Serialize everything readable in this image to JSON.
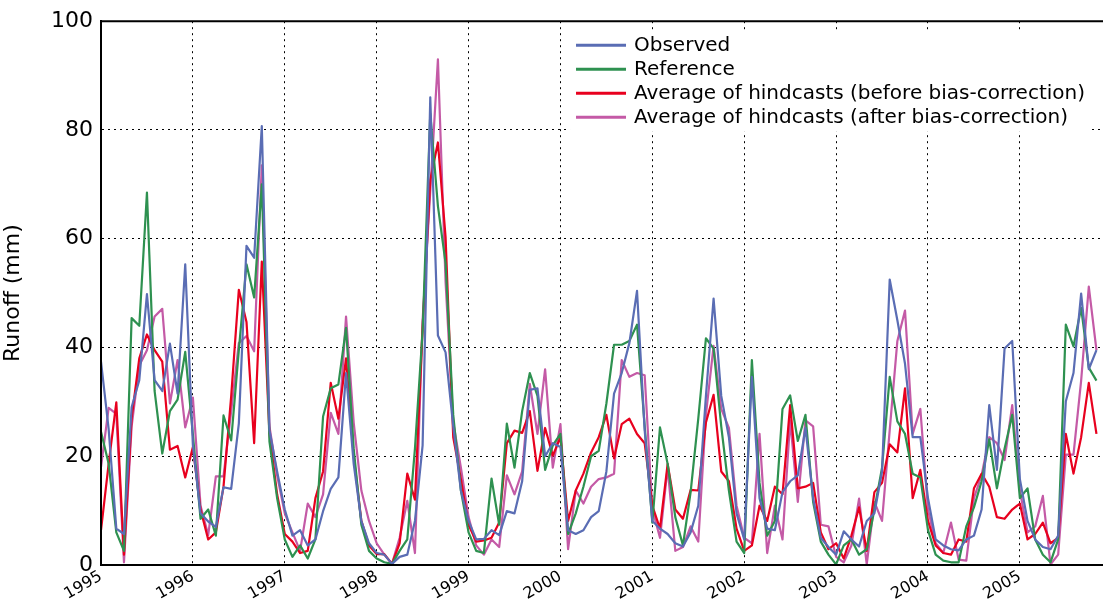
{
  "chart_data": {
    "type": "line",
    "ylabel": "Runoff (mm)",
    "x": [
      "1995-01",
      "1995-02",
      "1995-03",
      "1995-04",
      "1995-05",
      "1995-06",
      "1995-07",
      "1995-08",
      "1995-09",
      "1995-10",
      "1995-11",
      "1995-12",
      "1996-01",
      "1996-02",
      "1996-03",
      "1996-04",
      "1996-05",
      "1996-06",
      "1996-07",
      "1996-08",
      "1996-09",
      "1996-10",
      "1996-11",
      "1996-12",
      "1997-01",
      "1997-02",
      "1997-03",
      "1997-04",
      "1997-05",
      "1997-06",
      "1997-07",
      "1997-08",
      "1997-09",
      "1997-10",
      "1997-11",
      "1997-12",
      "1998-01",
      "1998-02",
      "1998-03",
      "1998-04",
      "1998-05",
      "1998-06",
      "1998-07",
      "1998-08",
      "1998-09",
      "1998-10",
      "1998-11",
      "1998-12",
      "1999-01",
      "1999-02",
      "1999-03",
      "1999-04",
      "1999-05",
      "1999-06",
      "1999-07",
      "1999-08",
      "1999-09",
      "1999-10",
      "1999-11",
      "1999-12",
      "2000-01",
      "2000-02",
      "2000-03",
      "2000-04",
      "2000-05",
      "2000-06",
      "2000-07",
      "2000-08",
      "2000-09",
      "2000-10",
      "2000-11",
      "2000-12",
      "2001-01",
      "2001-02",
      "2001-03",
      "2001-04",
      "2001-05",
      "2001-06",
      "2001-07",
      "2001-08",
      "2001-09",
      "2001-10",
      "2001-11",
      "2001-12",
      "2002-01",
      "2002-02",
      "2002-03",
      "2002-04",
      "2002-05",
      "2002-06",
      "2002-07",
      "2002-08",
      "2002-09",
      "2002-10",
      "2002-11",
      "2002-12",
      "2003-01",
      "2003-02",
      "2003-03",
      "2003-04",
      "2003-05",
      "2003-06",
      "2003-07",
      "2003-08",
      "2003-09",
      "2003-10",
      "2003-11",
      "2003-12",
      "2004-01",
      "2004-02",
      "2004-03",
      "2004-04",
      "2004-05",
      "2004-06",
      "2004-07",
      "2004-08",
      "2004-09",
      "2004-10",
      "2004-11",
      "2004-12",
      "2005-01",
      "2005-02",
      "2005-03",
      "2005-04",
      "2005-05",
      "2005-06",
      "2005-07",
      "2005-08",
      "2005-09",
      "2005-10",
      "2005-11"
    ],
    "series": [
      {
        "name": "Observed",
        "color": "#5a6db4",
        "values": [
          37.4,
          25,
          6.7,
          5.7,
          29,
          34,
          49.8,
          34,
          32,
          40.7,
          31.5,
          55.3,
          22,
          9.5,
          8,
          7,
          14.3,
          14,
          26,
          58.7,
          56.5,
          80.7,
          24.8,
          17.2,
          10.2,
          5.4,
          6.4,
          3.6,
          4.7,
          9.9,
          14,
          16.1,
          35.3,
          18.6,
          8.1,
          4,
          2.2,
          1.9,
          0.2,
          1.5,
          1.9,
          8.1,
          22,
          86,
          42.2,
          39.1,
          25.5,
          13.7,
          8.1,
          4.7,
          4.8,
          6.4,
          5.5,
          9.9,
          9.5,
          15.4,
          32.2,
          32.5,
          20,
          22.4,
          21.7,
          6.4,
          5.7,
          6.4,
          8.8,
          9.9,
          17.2,
          31.5,
          35.3,
          40.8,
          50.4,
          24.8,
          8.1,
          6.7,
          5.7,
          4,
          3.4,
          6,
          10.9,
          31.1,
          49,
          31.1,
          23.5,
          9.5,
          4.7,
          34.6,
          12.3,
          6.7,
          6.4,
          13.4,
          15.4,
          16.5,
          25.2,
          12.3,
          5,
          3.3,
          1.9,
          6.2,
          4.7,
          3.4,
          8.1,
          9.5,
          17.2,
          52.5,
          45,
          37,
          23.5,
          23.5,
          12.3,
          4.7,
          3.6,
          2.9,
          2.7,
          4.7,
          5.4,
          10.2,
          29.4,
          17.5,
          39.8,
          41.2,
          15.8,
          8.1,
          4.7,
          3.3,
          2.9,
          5.4,
          30.1,
          35.3,
          49.9,
          36,
          39.5
        ]
      },
      {
        "name": "Reference",
        "color": "#2e9150",
        "values": [
          24.5,
          18.6,
          6,
          2.6,
          45.4,
          44,
          68.5,
          32,
          20.5,
          28.3,
          30.4,
          39.2,
          24,
          8.5,
          10.2,
          5.4,
          27.5,
          22.9,
          39.5,
          55.3,
          49.2,
          70,
          22.7,
          12.3,
          4.7,
          1.5,
          3.6,
          1.2,
          4.7,
          27.3,
          32.5,
          33.2,
          43.6,
          21.4,
          7.4,
          2.6,
          1.2,
          0.5,
          0.2,
          2.6,
          4.7,
          21.4,
          43,
          83,
          66,
          55.5,
          27.6,
          13.7,
          6,
          2.6,
          2.2,
          15.9,
          7.4,
          26,
          17.9,
          28.3,
          35.3,
          31.1,
          17.5,
          22,
          24.1,
          5.7,
          9.5,
          14.4,
          20,
          21,
          29.7,
          40.5,
          40.5,
          41.2,
          44.2,
          25.5,
          7.8,
          25.3,
          18.6,
          8.8,
          3.6,
          13.4,
          26.9,
          41.7,
          39.8,
          25.5,
          13.7,
          4.3,
          2.2,
          37.7,
          15.1,
          5.4,
          8.1,
          28.7,
          31.2,
          22.8,
          27.6,
          11.6,
          4.3,
          1.9,
          0.1,
          3.6,
          4.7,
          1.9,
          2.9,
          10.2,
          17.9,
          34.6,
          26.4,
          24.1,
          16.8,
          16.1,
          6.4,
          1.9,
          0.8,
          0.5,
          0.5,
          7.1,
          10.6,
          15.4,
          23.1,
          14.1,
          21.4,
          27.6,
          12.3,
          14.1,
          4.7,
          1.9,
          0.5,
          4.7,
          44.2,
          40.2,
          47.3,
          36.3,
          33.9
        ]
      },
      {
        "name": "Average of hindcasts (before bias-correction)",
        "color": "#e8001e",
        "values": [
          6.4,
          18.6,
          29.9,
          1.9,
          27,
          38,
          42.4,
          39.5,
          37.4,
          21.2,
          21.9,
          16.1,
          21.7,
          10.2,
          4.7,
          6,
          14.4,
          31,
          50.6,
          44.7,
          22.4,
          55.8,
          24.1,
          13,
          5.7,
          4.3,
          2.2,
          2.6,
          12.3,
          17.2,
          33.5,
          26.9,
          38,
          20,
          8.1,
          3.6,
          2,
          2,
          0.2,
          4,
          16.8,
          12,
          43.6,
          70.8,
          77.7,
          60.3,
          23.5,
          15.8,
          7.4,
          4.3,
          4.5,
          5,
          7.8,
          22.4,
          24.7,
          24.3,
          28.3,
          17.3,
          25.2,
          20.1,
          23.5,
          8.1,
          13.7,
          16.8,
          20.7,
          23.5,
          27.6,
          19.6,
          25.9,
          26.9,
          24.1,
          22.4,
          10.9,
          6.7,
          18.6,
          10.2,
          8.5,
          13.8,
          13.7,
          26.2,
          31.3,
          17.2,
          15.4,
          6.7,
          2.6,
          3.6,
          10.9,
          8.1,
          14.4,
          13,
          29.4,
          14.1,
          14.4,
          15.1,
          6,
          2.9,
          4,
          1.2,
          5.4,
          10.6,
          2.6,
          13.4,
          15.1,
          22.2,
          20.7,
          32.5,
          12.3,
          17.5,
          8.1,
          3.6,
          2.2,
          1.9,
          4.7,
          4.3,
          14.1,
          16.8,
          14.4,
          8.8,
          8.5,
          10.2,
          11.3,
          4.7,
          5.7,
          7.8,
          4,
          5,
          24.1,
          16.8,
          23.5,
          33.5,
          24.1
        ]
      },
      {
        "name": "Average of hindcasts (after bias-correction)",
        "color": "#c45aa6",
        "values": [
          18,
          28.9,
          27.8,
          0.5,
          25.5,
          36.7,
          39.5,
          45.7,
          47.1,
          29.7,
          37.7,
          25.3,
          30.8,
          10.9,
          5.5,
          16.3,
          16.3,
          28.3,
          40.8,
          42.1,
          39.3,
          73.5,
          25.5,
          16.5,
          9.5,
          6,
          2.6,
          11.3,
          8.8,
          13,
          28,
          24.1,
          45.7,
          26.2,
          13.7,
          8.1,
          4,
          1.9,
          0.2,
          5,
          11.8,
          2.2,
          45,
          68.7,
          93,
          52,
          26.2,
          17.9,
          8.8,
          3.6,
          1.9,
          4.7,
          3.3,
          16.5,
          13,
          17.2,
          33.3,
          24.1,
          36,
          17.9,
          25.9,
          2.9,
          13.7,
          11.3,
          14.4,
          15.8,
          16.1,
          16.8,
          37.7,
          34.6,
          35.3,
          34.9,
          10.2,
          5,
          17.9,
          2.6,
          3.3,
          7.1,
          4.3,
          27.6,
          40.3,
          28.7,
          25.2,
          10.9,
          5,
          4,
          24.1,
          2.2,
          10.9,
          4.7,
          26.6,
          11.6,
          26.6,
          25.5,
          7.4,
          7.1,
          1.5,
          0.5,
          3.6,
          12.2,
          0.1,
          11.6,
          8.1,
          24.8,
          41.2,
          46.8,
          24.1,
          28.7,
          10.2,
          4,
          2.2,
          7.8,
          1,
          0.8,
          12.3,
          16.5,
          23.5,
          22.4,
          19.3,
          29.4,
          13.7,
          6,
          7.1,
          12.7,
          0.1,
          1.9,
          20.3,
          20.3,
          33.9,
          51.2,
          39.5
        ]
      }
    ],
    "xlim": [
      "1995-01-01",
      "2005-11-27"
    ],
    "xticks": [
      "1995",
      "1996",
      "1997",
      "1998",
      "1999",
      "2000",
      "2001",
      "2002",
      "2003",
      "2004",
      "2005"
    ],
    "ylim": [
      0,
      100
    ],
    "yticks": [
      0,
      20,
      40,
      60,
      80,
      100
    ],
    "grid": true,
    "legend": "top right",
    "marker": "none",
    "line_style": "solid"
  }
}
